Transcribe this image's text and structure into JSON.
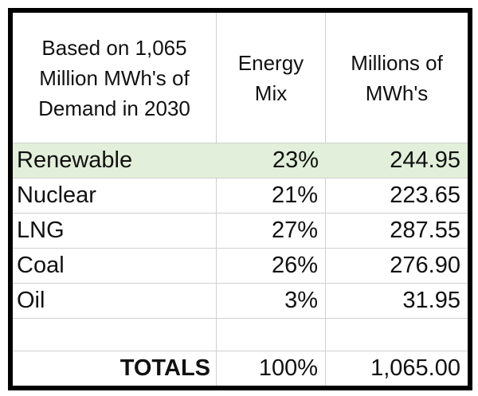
{
  "table": {
    "header": {
      "basis": "Based on 1,065 Million MWh's of Demand in 2030",
      "energy_mix": "Energy Mix",
      "millions_mwh": "Millions of MWh's"
    },
    "rows": [
      {
        "source": "Renewable",
        "mix": "23%",
        "mwh": "244.95",
        "highlighted": true
      },
      {
        "source": "Nuclear",
        "mix": "21%",
        "mwh": "223.65",
        "highlighted": false
      },
      {
        "source": "LNG",
        "mix": "27%",
        "mwh": "287.55",
        "highlighted": false
      },
      {
        "source": "Coal",
        "mix": "26%",
        "mwh": "276.90",
        "highlighted": false
      },
      {
        "source": "Oil",
        "mix": "3%",
        "mwh": "31.95",
        "highlighted": false
      }
    ],
    "empty_row": {
      "source": "",
      "mix": "",
      "mwh": ""
    },
    "totals": {
      "label": "TOTALS",
      "mix": "100%",
      "mwh": "1,065.00"
    }
  },
  "colors": {
    "highlight_green": "#e2efda",
    "gridline_gray": "#d0d0d0",
    "outer_border_black": "#000000",
    "text_black": "#111111",
    "background_white": "#ffffff"
  }
}
